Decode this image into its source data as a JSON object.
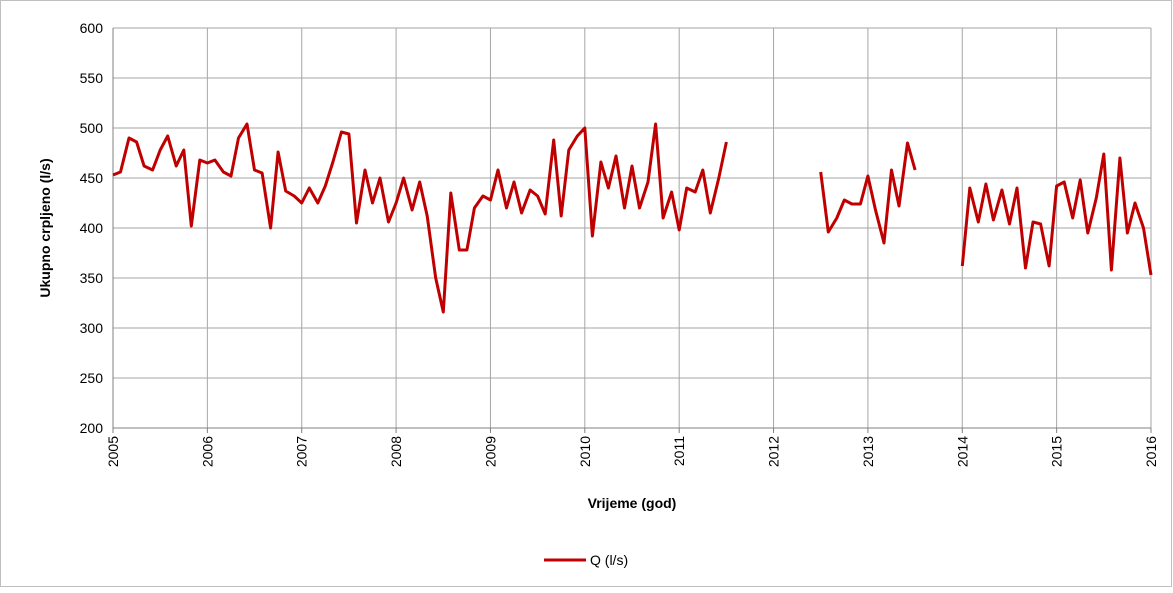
{
  "chart_data": {
    "type": "line",
    "y_label": "Ukupno crpljeno  (l/s)",
    "x_label": "Vrijeme (god)",
    "xlim": [
      2005,
      2016
    ],
    "xticks": [
      2005,
      2006,
      2007,
      2008,
      2009,
      2010,
      2011,
      2012,
      2013,
      2014,
      2015,
      2016
    ],
    "ylim": [
      200,
      600
    ],
    "yticks": [
      200,
      250,
      300,
      350,
      400,
      450,
      500,
      550,
      600
    ],
    "grid": true,
    "legend": "bottom",
    "x": [
      2005,
      2005.08,
      2005.17,
      2005.25,
      2005.33,
      2005.42,
      2005.5,
      2005.58,
      2005.67,
      2005.75,
      2005.83,
      2005.92,
      2006,
      2006.08,
      2006.17,
      2006.25,
      2006.33,
      2006.42,
      2006.5,
      2006.58,
      2006.67,
      2006.75,
      2006.83,
      2006.92,
      2007,
      2007.08,
      2007.17,
      2007.25,
      2007.33,
      2007.42,
      2007.5,
      2007.58,
      2007.67,
      2007.75,
      2007.83,
      2007.92,
      2008,
      2008.08,
      2008.17,
      2008.25,
      2008.33,
      2008.42,
      2008.5,
      2008.58,
      2008.67,
      2008.75,
      2008.83,
      2008.92,
      2009,
      2009.08,
      2009.17,
      2009.25,
      2009.33,
      2009.42,
      2009.5,
      2009.58,
      2009.67,
      2009.75,
      2009.83,
      2009.92,
      2010,
      2010.08,
      2010.17,
      2010.25,
      2010.33,
      2010.42,
      2010.5,
      2010.58,
      2010.67,
      2010.75,
      2010.83,
      2010.92,
      2011,
      2011.08,
      2011.17,
      2011.25,
      2011.33,
      2011.42,
      2011.5,
      2012,
      2012.5,
      2012.58,
      2012.67,
      2012.75,
      2012.83,
      2012.92,
      2013,
      2013.08,
      2013.17,
      2013.25,
      2013.33,
      2013.42,
      2013.5,
      2013.75,
      2014,
      2014.08,
      2014.17,
      2014.25,
      2014.33,
      2014.42,
      2014.5,
      2014.58,
      2014.67,
      2014.75,
      2014.83,
      2014.92,
      2015,
      2015.08,
      2015.17,
      2015.25,
      2015.33,
      2015.42,
      2015.5,
      2015.58,
      2015.67,
      2015.75,
      2015.83,
      2015.92,
      2016
    ],
    "series": [
      {
        "name": "Q (l/s)",
        "color": "#c00000",
        "values": [
          453,
          456,
          490,
          486,
          462,
          458,
          478,
          492,
          462,
          478,
          402,
          468,
          465,
          468,
          456,
          452,
          490,
          504,
          458,
          455,
          400,
          476,
          437,
          432,
          425,
          440,
          425,
          442,
          466,
          496,
          494,
          405,
          458,
          425,
          450,
          406,
          425,
          450,
          418,
          446,
          412,
          350,
          316,
          435,
          378,
          378,
          420,
          432,
          428,
          458,
          420,
          446,
          415,
          438,
          432,
          414,
          488,
          412,
          478,
          492,
          500,
          392,
          466,
          440,
          472,
          420,
          462,
          420,
          446,
          504,
          410,
          436,
          398,
          440,
          436,
          458,
          415,
          450,
          486,
          null,
          456,
          396,
          410,
          428,
          424,
          424,
          452,
          418,
          385,
          458,
          422,
          485,
          458,
          null,
          362,
          440,
          406,
          444,
          408,
          438,
          404,
          440,
          360,
          406,
          404,
          362,
          442,
          446,
          410,
          448,
          395,
          430,
          474,
          358,
          470,
          395,
          425,
          400,
          353
        ]
      }
    ]
  }
}
